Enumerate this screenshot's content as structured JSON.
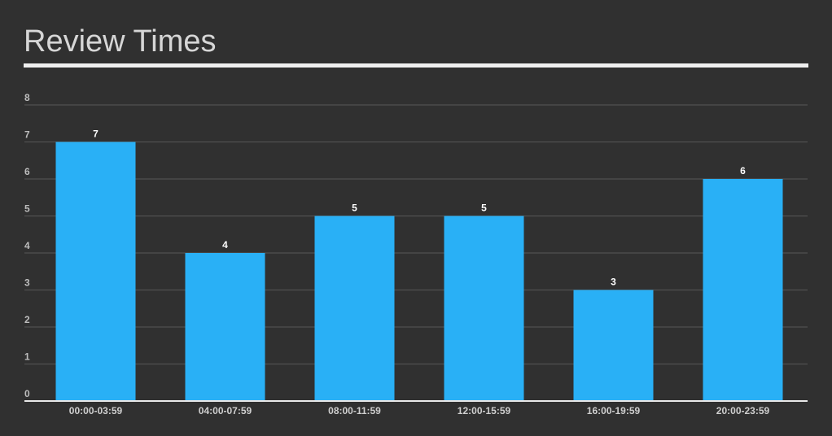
{
  "chart_data": {
    "type": "bar",
    "title": "Review Times",
    "categories": [
      "00:00-03:59",
      "04:00-07:59",
      "08:00-11:59",
      "12:00-15:59",
      "16:00-19:59",
      "20:00-23:59"
    ],
    "values": [
      7,
      4,
      5,
      5,
      3,
      6
    ],
    "color": "#29b0f6",
    "ylim": [
      0,
      8
    ],
    "yticks": [
      0,
      1,
      2,
      3,
      4,
      5,
      6,
      7,
      8
    ],
    "grid": true,
    "data_labels": true
  }
}
